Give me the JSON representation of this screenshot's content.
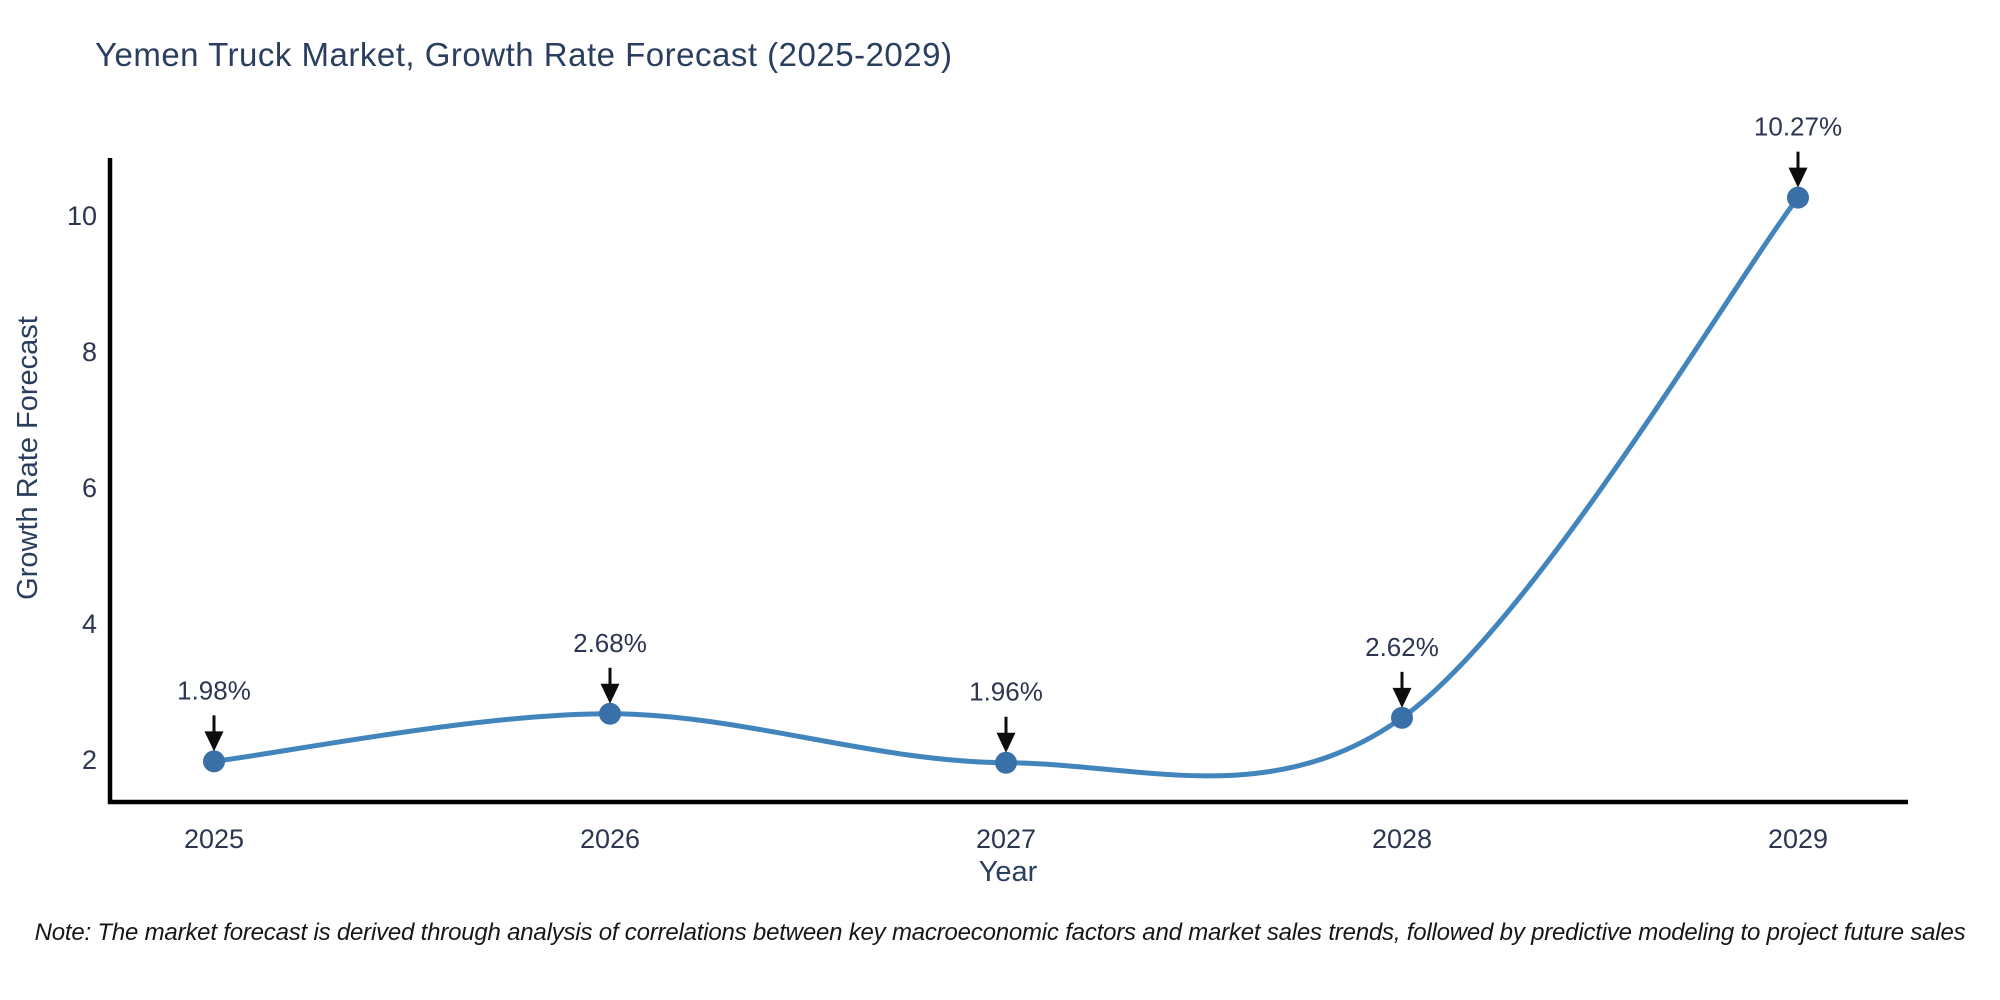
{
  "chart_data": {
    "type": "line",
    "title": "Yemen Truck Market, Growth Rate Forecast (2025-2029)",
    "xlabel": "Year",
    "ylabel": "Growth Rate Forecast",
    "x": [
      2025,
      2026,
      2027,
      2028,
      2029
    ],
    "series": [
      {
        "name": "Growth Rate Forecast",
        "values": [
          1.98,
          2.68,
          1.96,
          2.62,
          10.27
        ]
      }
    ],
    "point_labels": [
      "1.98%",
      "2.68%",
      "1.96%",
      "2.62%",
      "10.27%"
    ],
    "xticks": [
      "2025",
      "2026",
      "2027",
      "2028",
      "2029"
    ],
    "yticks": [
      2,
      4,
      6,
      8,
      10
    ],
    "ylim": [
      1.3,
      11.5
    ],
    "grid": false,
    "legend_position": "none",
    "colors": {
      "line": "#4285bd",
      "marker": "#3a70a8",
      "axis": "#000000",
      "title_text": "#2a3f5f",
      "tick_text": "#2d3650",
      "annotation_text": "#2d3650",
      "annotation_arrow": "#0d0d0d",
      "background": "#ffffff"
    }
  },
  "note": "Note: The market forecast is derived through analysis of correlations between key macroeconomic factors and market sales trends, followed by predictive modeling to project future sales"
}
